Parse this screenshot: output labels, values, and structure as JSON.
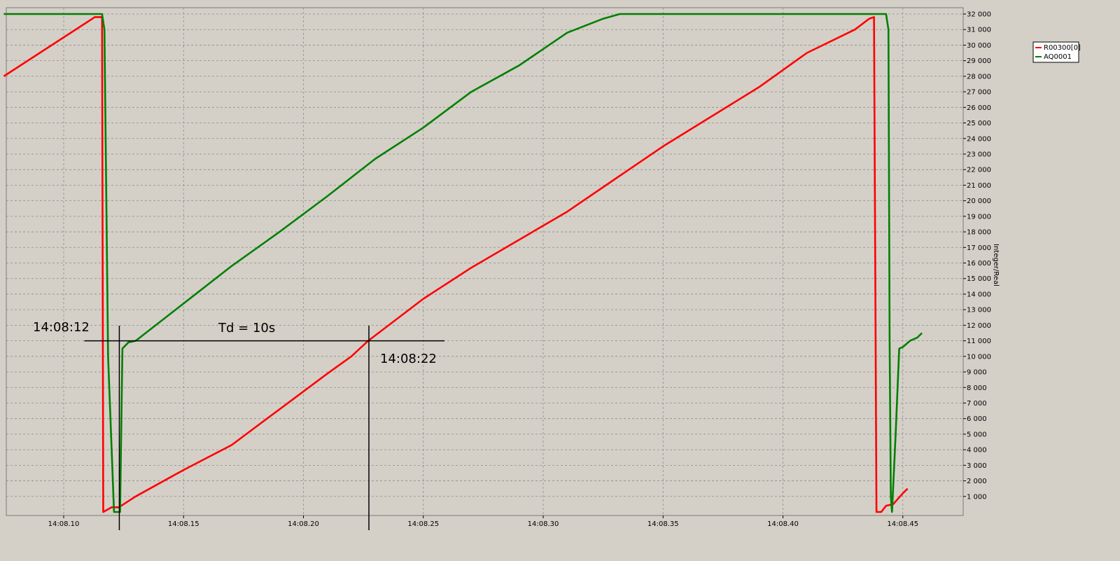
{
  "chart_data": {
    "type": "line",
    "title": "",
    "xlabel": "",
    "ylabel": "Integer/Real",
    "xlim_seconds": [
      7.5,
      47.5
    ],
    "ylim": [
      0,
      32000
    ],
    "grid": true,
    "legend_position": "top-right",
    "x_ticks": [
      {
        "t": 10,
        "label": "14:08.10"
      },
      {
        "t": 15,
        "label": "14:08.15"
      },
      {
        "t": 20,
        "label": "14:08.20"
      },
      {
        "t": 25,
        "label": "14:08.25"
      },
      {
        "t": 30,
        "label": "14:08.30"
      },
      {
        "t": 35,
        "label": "14:08.35"
      },
      {
        "t": 40,
        "label": "14:08.40"
      },
      {
        "t": 45,
        "label": "14:08.45"
      }
    ],
    "y_ticks": [
      {
        "v": 1000,
        "label": "1 000"
      },
      {
        "v": 2000,
        "label": "2 000"
      },
      {
        "v": 3000,
        "label": "3 000"
      },
      {
        "v": 4000,
        "label": "4 000"
      },
      {
        "v": 5000,
        "label": "5 000"
      },
      {
        "v": 6000,
        "label": "6 000"
      },
      {
        "v": 7000,
        "label": "7 000"
      },
      {
        "v": 8000,
        "label": "8 000"
      },
      {
        "v": 9000,
        "label": "9 000"
      },
      {
        "v": 10000,
        "label": "10 000"
      },
      {
        "v": 11000,
        "label": "11 000"
      },
      {
        "v": 12000,
        "label": "12 000"
      },
      {
        "v": 13000,
        "label": "13 000"
      },
      {
        "v": 14000,
        "label": "14 000"
      },
      {
        "v": 15000,
        "label": "15 000"
      },
      {
        "v": 16000,
        "label": "16 000"
      },
      {
        "v": 17000,
        "label": "17 000"
      },
      {
        "v": 18000,
        "label": "18 000"
      },
      {
        "v": 19000,
        "label": "19 000"
      },
      {
        "v": 20000,
        "label": "20 000"
      },
      {
        "v": 21000,
        "label": "21 000"
      },
      {
        "v": 22000,
        "label": "22 000"
      },
      {
        "v": 23000,
        "label": "23 000"
      },
      {
        "v": 24000,
        "label": "24 000"
      },
      {
        "v": 25000,
        "label": "25 000"
      },
      {
        "v": 26000,
        "label": "26 000"
      },
      {
        "v": 27000,
        "label": "27 000"
      },
      {
        "v": 28000,
        "label": "28 000"
      },
      {
        "v": 29000,
        "label": "29 000"
      },
      {
        "v": 30000,
        "label": "30 000"
      },
      {
        "v": 31000,
        "label": "31 000"
      },
      {
        "v": 32000,
        "label": "32 000"
      }
    ],
    "series": [
      {
        "name": "R00300[0]",
        "color": "#ff0000",
        "points": [
          [
            7.5,
            28000
          ],
          [
            11.3,
            31800
          ],
          [
            11.6,
            31800
          ],
          [
            11.65,
            0
          ],
          [
            12.0,
            300
          ],
          [
            12.3,
            300
          ],
          [
            13.0,
            1000
          ],
          [
            15.0,
            2700
          ],
          [
            17.0,
            4300
          ],
          [
            19.0,
            6600
          ],
          [
            21.0,
            8900
          ],
          [
            22.0,
            10000
          ],
          [
            22.7,
            11000
          ],
          [
            25.0,
            13700
          ],
          [
            27.0,
            15700
          ],
          [
            29.0,
            17500
          ],
          [
            31.0,
            19300
          ],
          [
            33.0,
            21400
          ],
          [
            35.0,
            23500
          ],
          [
            37.0,
            25400
          ],
          [
            39.0,
            27300
          ],
          [
            41.0,
            29500
          ],
          [
            43.0,
            31000
          ],
          [
            43.6,
            31700
          ],
          [
            43.8,
            31800
          ],
          [
            43.9,
            0
          ],
          [
            44.1,
            0
          ],
          [
            44.3,
            400
          ],
          [
            44.6,
            500
          ],
          [
            45.0,
            1200
          ],
          [
            45.2,
            1500
          ]
        ]
      },
      {
        "name": "AQ0001",
        "color": "#008000",
        "points": [
          [
            7.5,
            32000
          ],
          [
            11.6,
            32000
          ],
          [
            11.7,
            31000
          ],
          [
            11.85,
            10000
          ],
          [
            12.1,
            0
          ],
          [
            12.35,
            0
          ],
          [
            12.45,
            10500
          ],
          [
            12.7,
            10900
          ],
          [
            13.0,
            11000
          ],
          [
            15.0,
            13400
          ],
          [
            17.0,
            15800
          ],
          [
            19.0,
            18000
          ],
          [
            21.0,
            20300
          ],
          [
            23.0,
            22700
          ],
          [
            25.0,
            24700
          ],
          [
            27.0,
            27000
          ],
          [
            29.0,
            28700
          ],
          [
            31.0,
            30800
          ],
          [
            32.5,
            31700
          ],
          [
            33.2,
            32000
          ],
          [
            44.3,
            32000
          ],
          [
            44.4,
            31000
          ],
          [
            44.45,
            11000
          ],
          [
            44.5,
            1000
          ],
          [
            44.55,
            0
          ],
          [
            44.7,
            5000
          ],
          [
            44.85,
            10500
          ],
          [
            45.0,
            10600
          ],
          [
            45.3,
            11000
          ],
          [
            45.6,
            11200
          ],
          [
            45.8,
            11500
          ]
        ]
      }
    ],
    "annotations": {
      "start_label": "14:08:12",
      "end_label": "14:08:22",
      "delay_label": "Td = 10s",
      "reference_value": 11000,
      "start_t": 12.32,
      "end_t": 22.73
    }
  }
}
